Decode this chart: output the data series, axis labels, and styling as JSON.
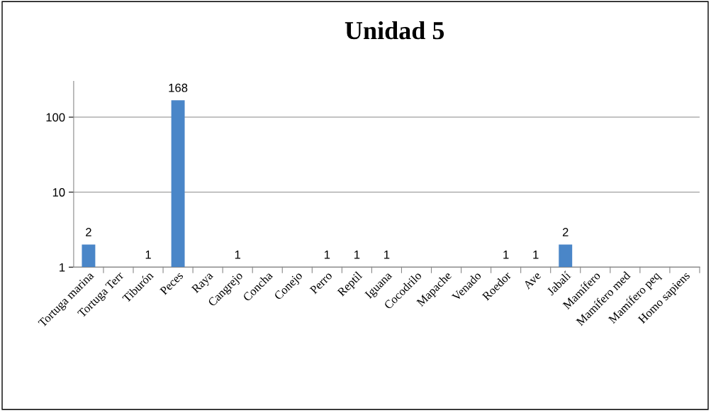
{
  "chart_data": {
    "type": "bar",
    "title": "Unidad 5",
    "categories": [
      "Tortuga marina",
      "Tortuga Terr",
      "Tiburón",
      "Peces",
      "Raya",
      "Cangrejo",
      "Concha",
      "Conejo",
      "Perro",
      "Reptil",
      "Iguana",
      "Cocodrilo",
      "Mapache",
      "Venado",
      "Roedor",
      "Ave",
      "Jabalí",
      "Mamífero",
      "Mamífero med",
      "Mamífero peq",
      "Homo sapiens"
    ],
    "values": [
      2,
      null,
      1,
      168,
      null,
      1,
      null,
      null,
      1,
      1,
      1,
      null,
      null,
      null,
      1,
      1,
      2,
      null,
      null,
      null,
      null
    ],
    "color": "#4a86c8",
    "log": true,
    "ylim": [
      1,
      300
    ],
    "yticks": [
      1,
      10,
      100
    ],
    "grid": "y",
    "data_labels": true,
    "legend": false
  }
}
